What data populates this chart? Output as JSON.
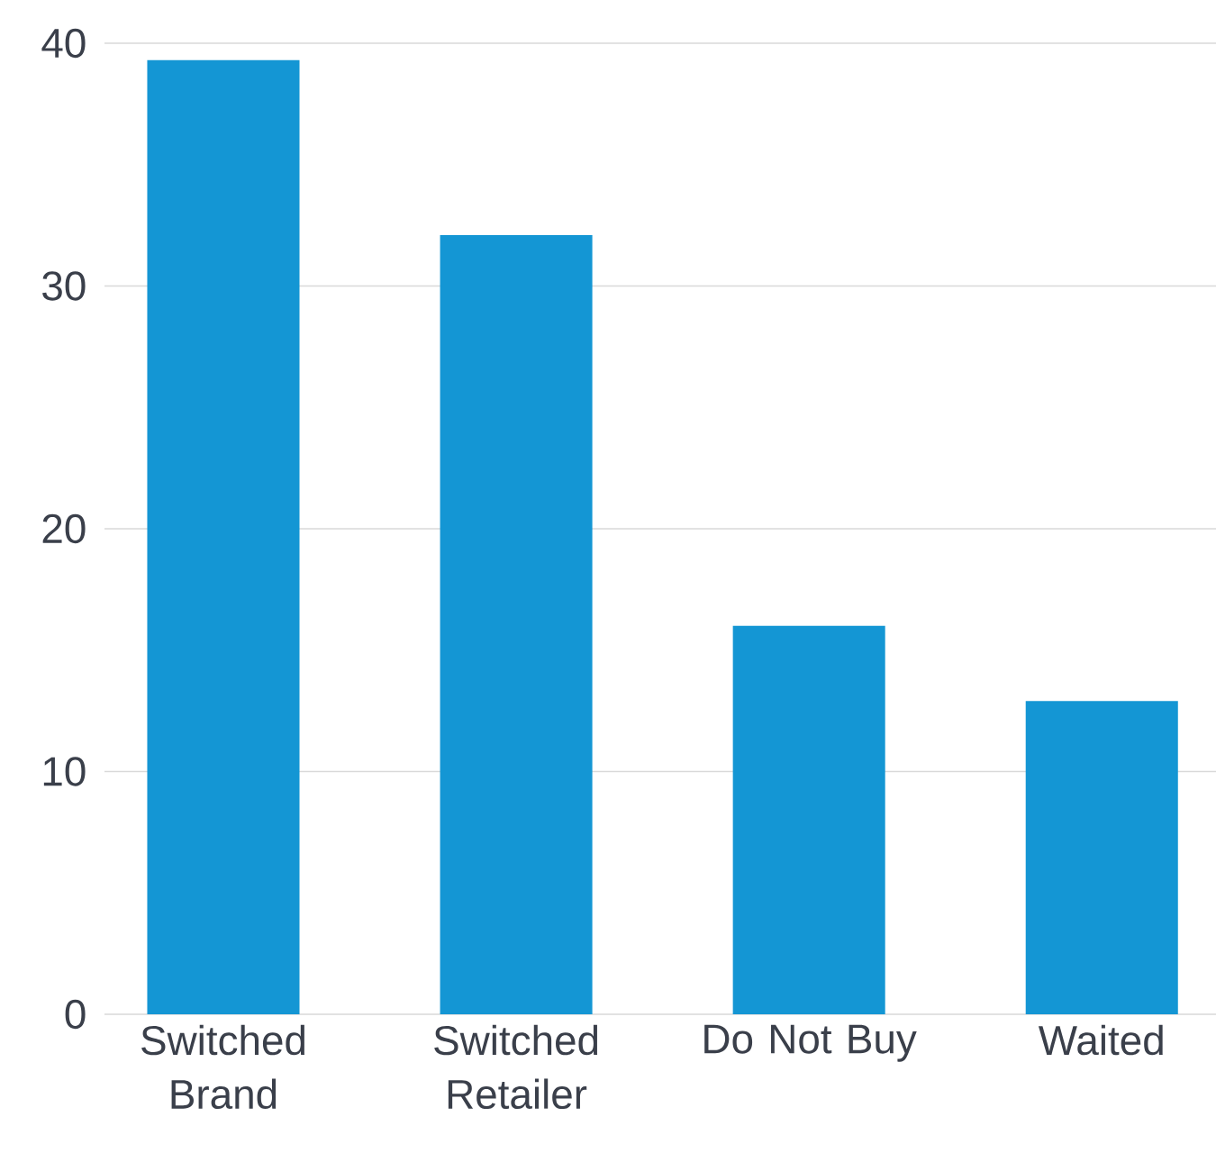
{
  "chart_data": {
    "type": "bar",
    "categories": [
      "Switched Brand",
      "Switched Retailer",
      "Do Not Buy",
      "Waited"
    ],
    "values": [
      39.3,
      32.1,
      16.0,
      12.9
    ],
    "color": "#1496d4",
    "ylim": [
      0,
      40
    ],
    "yticks": [
      0,
      10,
      20,
      30,
      40
    ],
    "grid": "y"
  }
}
